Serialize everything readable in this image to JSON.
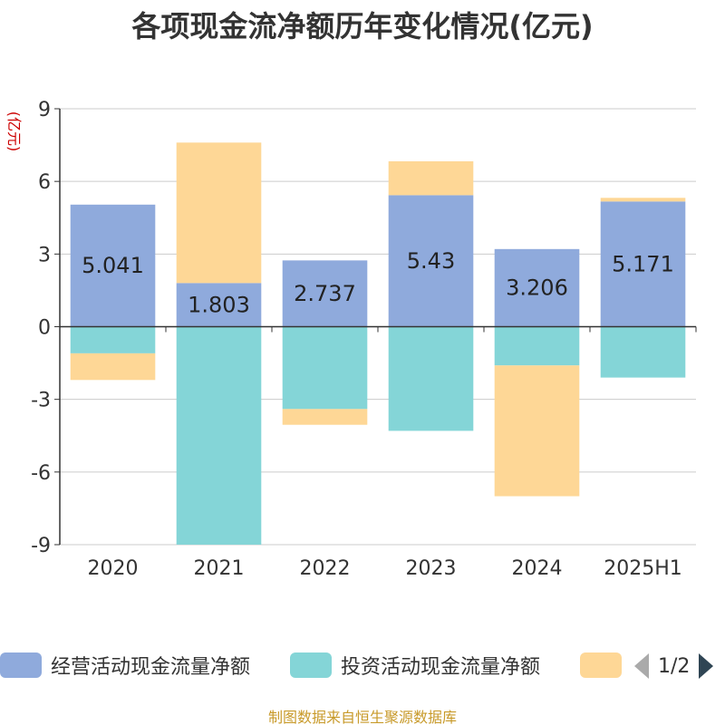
{
  "title": "各项现金流净额历年变化情况(亿元)",
  "source": "制图数据来自恒生聚源数据库",
  "pager": {
    "text": "1/2",
    "prev_icon": "triangle-left-icon",
    "next_icon": "triangle-right-icon"
  },
  "colors": {
    "operating": "#8faadc",
    "investing": "#84d5d7",
    "financing": "#fed796",
    "axis_unit": "#cc0000",
    "grid": "#cccccc",
    "axis": "#333333",
    "source": "#c89a2a"
  },
  "chart_data": {
    "type": "bar",
    "stacked": true,
    "title": "各项现金流净额历年变化情况(亿元)",
    "ylabel": "(亿元)",
    "ylim": [
      -9,
      9
    ],
    "yticks": [
      "9",
      "6",
      "3",
      "0",
      "-3",
      "-6",
      "-9"
    ],
    "grid": true,
    "legend_position": "bottom",
    "categories": [
      "2020",
      "2021",
      "2022",
      "2023",
      "2024",
      "2025H1"
    ],
    "series": [
      {
        "name": "经营活动现金流量净额",
        "color": "#8faadc",
        "values": [
          5.041,
          1.803,
          2.737,
          5.43,
          3.206,
          5.171
        ],
        "labels": [
          "5.041",
          "1.803",
          "2.737",
          "5.43",
          "3.206",
          "5.171"
        ]
      },
      {
        "name": "投资活动现金流量净额",
        "color": "#84d5d7",
        "values": [
          -1.1,
          -9.6,
          -3.4,
          -4.3,
          -1.6,
          -2.1
        ]
      },
      {
        "name": "",
        "color": "#fed796",
        "values": [
          -1.1,
          5.8,
          -0.65,
          1.4,
          -5.4,
          0.15
        ]
      }
    ]
  }
}
